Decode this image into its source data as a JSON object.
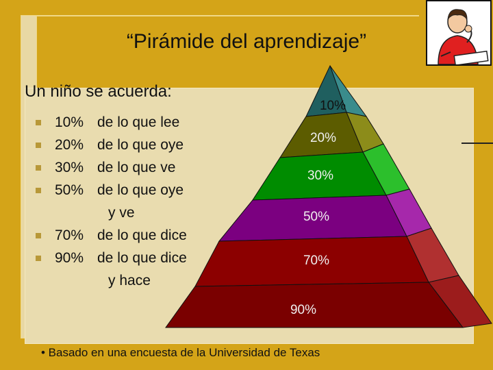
{
  "title": "“Pirámide del aprendizaje”",
  "subtitle": "Un niño se acuerda:",
  "items": [
    {
      "pct": "10%",
      "text": "de lo que lee",
      "cont": ""
    },
    {
      "pct": "20%",
      "text": "de lo que oye",
      "cont": ""
    },
    {
      "pct": "30%",
      "text": "de lo que ve",
      "cont": ""
    },
    {
      "pct": "50%",
      "text": "de lo que oye",
      "cont": "y ve"
    },
    {
      "pct": "70%",
      "text": "de lo que dice",
      "cont": ""
    },
    {
      "pct": "90%",
      "text": "de lo que dice",
      "cont": "y hace"
    }
  ],
  "pyramid": {
    "levels": [
      {
        "label": "10%",
        "color": "#1f5f5f",
        "side": "#3a8c8c"
      },
      {
        "label": "20%",
        "color": "#5c5c00",
        "side": "#8c8c1a"
      },
      {
        "label": "30%",
        "color": "#008c00",
        "side": "#2cbf2c"
      },
      {
        "label": "50%",
        "color": "#7b0080",
        "side": "#a628ab"
      },
      {
        "label": "70%",
        "color": "#8c0000",
        "side": "#b03030"
      },
      {
        "label": "90%",
        "color": "#7a0000",
        "side": "#9c1c1c"
      }
    ]
  },
  "footnote": "• Basado en una encuesta de la Universidad de  Texas",
  "illustration_icon": "thinking-student-icon"
}
